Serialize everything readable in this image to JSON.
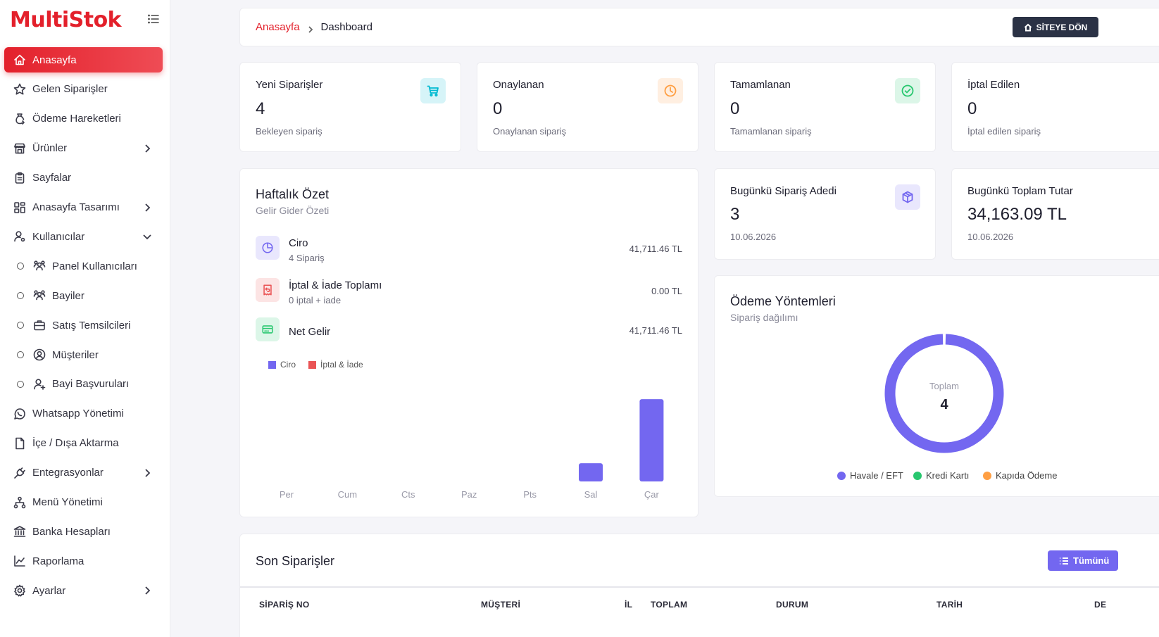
{
  "brand": {
    "name": "MultiStok"
  },
  "sidebar": {
    "items": [
      {
        "label": "Anasayfa",
        "icon": "home-icon",
        "active": true
      },
      {
        "label": "Gelen Siparişler",
        "icon": "star-icon"
      },
      {
        "label": "Ödeme Hareketleri",
        "icon": "money-bag-icon"
      },
      {
        "label": "Ürünler",
        "icon": "store-icon",
        "expandable": true
      },
      {
        "label": "Sayfalar",
        "icon": "clipboard-icon"
      },
      {
        "label": "Anasayfa Tasarımı",
        "icon": "layout-icon",
        "expandable": true
      },
      {
        "label": "Kullanıcılar",
        "icon": "user-settings-icon",
        "expanded": true
      },
      {
        "label": "Panel Kullanıcıları",
        "icon": "users-group-icon",
        "sub": true
      },
      {
        "label": "Bayiler",
        "icon": "users-group-icon",
        "sub": true
      },
      {
        "label": "Satış Temsilcileri",
        "icon": "briefcase-icon",
        "sub": true
      },
      {
        "label": "Müşteriler",
        "icon": "user-circle-icon",
        "sub": true
      },
      {
        "label": "Bayi Başvuruları",
        "icon": "user-plus-icon",
        "sub": true
      },
      {
        "label": "Whatsapp Yönetimi",
        "icon": "whatsapp-icon"
      },
      {
        "label": "İçe / Dışa Aktarma",
        "icon": "file-icon"
      },
      {
        "label": "Entegrasyonlar",
        "icon": "plug-icon",
        "expandable": true
      },
      {
        "label": "Menü Yönetimi",
        "icon": "sitemap-icon"
      },
      {
        "label": "Banka Hesapları",
        "icon": "bank-icon"
      },
      {
        "label": "Raporlama",
        "icon": "chart-line-icon"
      },
      {
        "label": "Ayarlar",
        "icon": "gear-icon",
        "expandable": true
      }
    ]
  },
  "breadcrumb": {
    "home": "Anasayfa",
    "current": "Dashboard"
  },
  "header": {
    "site_button": "SİTEYE DÖN"
  },
  "stats": [
    {
      "title": "Yeni Siparişler",
      "value": "4",
      "sub": "Bekleyen sipariş",
      "icon": "cart-icon",
      "color": "#00bad1",
      "bg": "#d6f4f8"
    },
    {
      "title": "Onaylanan",
      "value": "0",
      "sub": "Onaylanan sipariş",
      "icon": "clock-icon",
      "color": "#ff9f43",
      "bg": "#ffefe1"
    },
    {
      "title": "Tamamlanan",
      "value": "0",
      "sub": "Tamamlanan sipariş",
      "icon": "check-circle-icon",
      "color": "#28c76f",
      "bg": "#dcf6e8"
    },
    {
      "title": "İptal Edilen",
      "value": "0",
      "sub": "İptal edilen sipariş"
    }
  ],
  "today": [
    {
      "title": "Bugünkü Sipariş Adedi",
      "value": "3",
      "sub": "10.06.2026",
      "icon": "box-icon",
      "color": "#7367f0",
      "bg": "#e9e7fd"
    },
    {
      "title": "Bugünkü Toplam Tutar",
      "value": "34,163.09 TL",
      "sub": "10.06.2026"
    }
  ],
  "weekly": {
    "title": "Haftalık Özet",
    "subtitle": "Gelir Gider Özeti",
    "rows": [
      {
        "label": "Ciro",
        "sub": "4 Sipariş",
        "value": "41,711.46 TL",
        "icon": "pie-icon",
        "color": "#7367f0",
        "bg": "#e9e7fd"
      },
      {
        "label": "İptal & İade Toplamı",
        "sub": "0 iptal + iade",
        "value": "0.00 TL",
        "icon": "receipt-refund-icon",
        "color": "#ea5455",
        "bg": "#fce4e4"
      },
      {
        "label": "Net Gelir",
        "sub": "",
        "value": "41,711.46 TL",
        "icon": "credit-card-icon",
        "color": "#28c76f",
        "bg": "#dcf6e8"
      }
    ]
  },
  "chart_data": {
    "type": "bar",
    "categories": [
      "Per",
      "Cum",
      "Cts",
      "Paz",
      "Pts",
      "Sal",
      "Çar"
    ],
    "series": [
      {
        "name": "Ciro",
        "color": "#7367f0",
        "values": [
          0,
          0,
          0,
          0,
          0,
          7548.37,
          34163.09
        ]
      },
      {
        "name": "İptal & İade",
        "color": "#ea5455",
        "values": [
          0,
          0,
          0,
          0,
          0,
          0,
          0
        ]
      }
    ],
    "ylim": [
      0,
      38000
    ],
    "legend": "top-left",
    "grid": false
  },
  "payment": {
    "title": "Ödeme Yöntemleri",
    "subtitle": "Sipariş dağılımı",
    "center_label": "Toplam",
    "center_value": "4",
    "slices": [
      {
        "name": "Havale / EFT",
        "value": 4,
        "color": "#7367f0"
      },
      {
        "name": "Kredi Kartı",
        "value": 0,
        "color": "#28c76f"
      },
      {
        "name": "Kapıda Ödeme",
        "value": 0,
        "color": "#ff9f43"
      }
    ]
  },
  "orders": {
    "title": "Son Siparişler",
    "all_button": "Tümünü",
    "columns": [
      "SİPARİŞ NO",
      "MÜŞTERİ",
      "İL",
      "TOPLAM",
      "DURUM",
      "TARİH",
      "DE"
    ]
  }
}
